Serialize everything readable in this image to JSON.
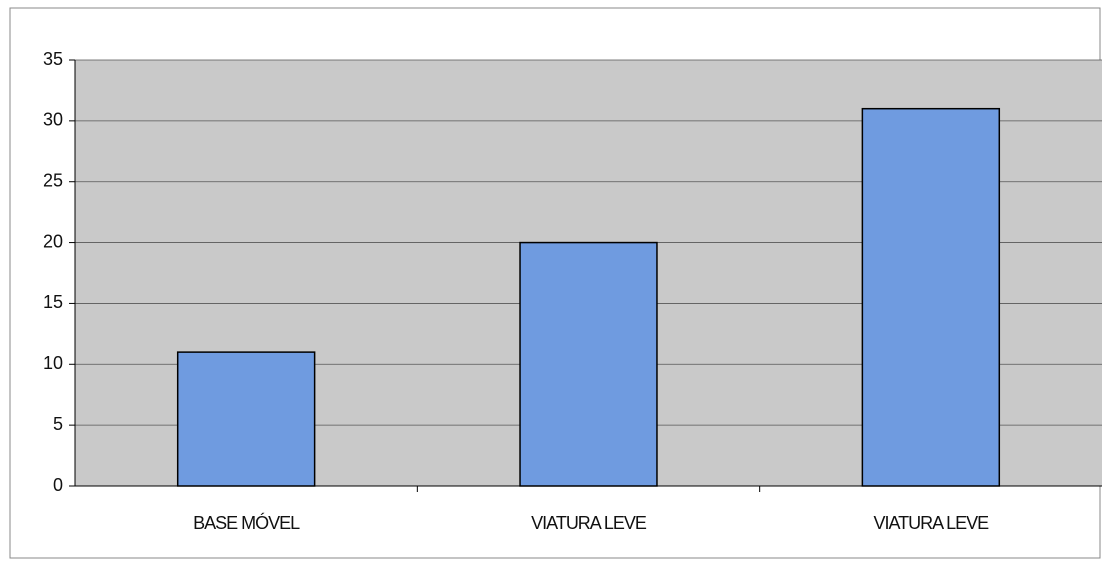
{
  "chart_data": {
    "type": "bar",
    "categories": [
      "BASE MÓVEL",
      "VIATURA LEVE",
      "VIATURA LEVE"
    ],
    "values": [
      11,
      20,
      31
    ],
    "color": "#6f9be0",
    "ylim": [
      0,
      35
    ],
    "yticks": [
      0,
      5,
      10,
      15,
      20,
      25,
      30,
      35
    ],
    "grid": true
  }
}
